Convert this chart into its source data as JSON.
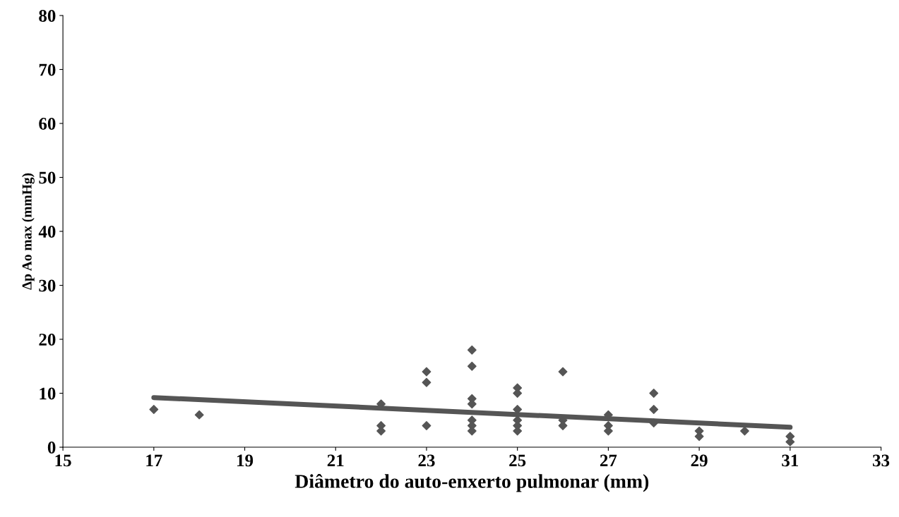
{
  "chart_data": {
    "type": "scatter",
    "xlabel": "Diâmetro do auto-enxerto pulmonar (mm)",
    "ylabel": "Δp Ao max (mmHg)",
    "xlim": [
      15,
      33
    ],
    "xticks": [
      15,
      17,
      19,
      21,
      23,
      25,
      27,
      29,
      31,
      33
    ],
    "ylim": [
      0,
      80
    ],
    "yticks": [
      0,
      10,
      20,
      30,
      40,
      50,
      60,
      70,
      80
    ],
    "grid": false,
    "marker": "diamond",
    "series": [
      {
        "color": "#555555",
        "x": [
          17,
          18,
          22,
          22,
          22,
          23,
          23,
          23,
          24,
          24,
          24,
          24,
          24,
          24,
          24,
          25,
          25,
          25,
          25,
          25,
          25,
          26,
          26,
          26,
          27,
          27,
          27,
          28,
          28,
          28,
          29,
          29,
          30,
          31,
          31
        ],
        "values": [
          7,
          6,
          8,
          4,
          3,
          14,
          12,
          4,
          18,
          15,
          9,
          8,
          5,
          4,
          3,
          11,
          10,
          7,
          5,
          4,
          3,
          14,
          5,
          4,
          6,
          4,
          3,
          10,
          7,
          4.5,
          3,
          2,
          3,
          2,
          1
        ]
      },
      {
        "type": "line",
        "color": "#555555",
        "x": [
          17,
          31
        ],
        "values": [
          9.2,
          3.7
        ],
        "marker": "none"
      }
    ]
  }
}
